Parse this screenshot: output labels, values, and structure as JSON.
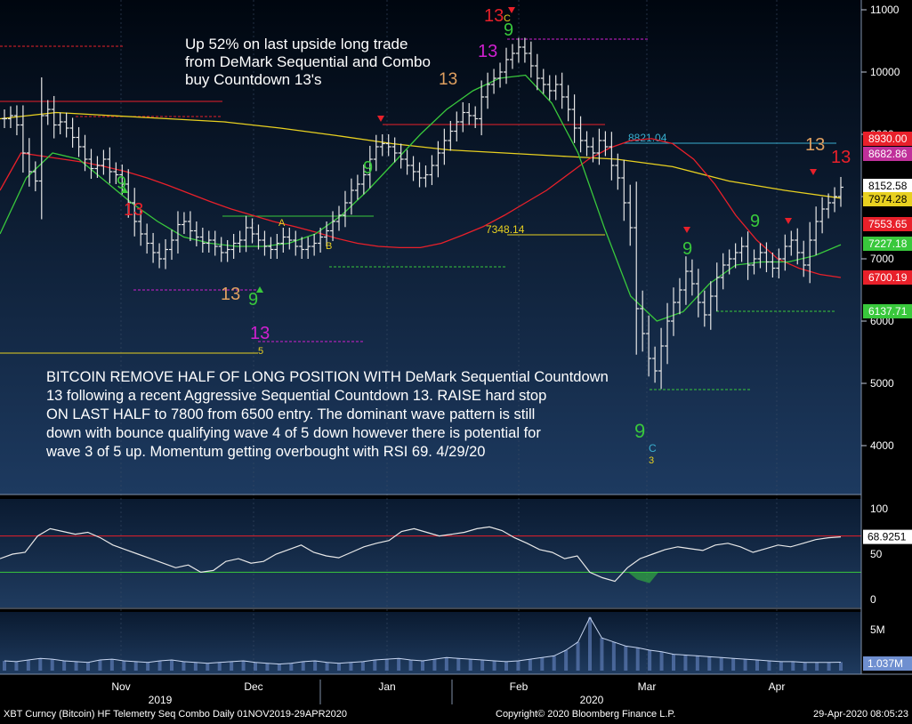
{
  "chart_data": [
    {
      "type": "candlestick",
      "instrument": "XBT Curncy (Bitcoin)",
      "ylim": [
        3300,
        11100
      ],
      "y_ticks": [
        4000,
        5000,
        6000,
        7000,
        8000,
        9000,
        10000,
        11000
      ],
      "x_month_labels": [
        "Nov",
        "Dec",
        "Jan",
        "Feb",
        "Mar",
        "Apr"
      ],
      "x_year_labels": [
        "2019",
        "2020"
      ],
      "price_tags": [
        {
          "value": "8930.00",
          "color": "#e8202a"
        },
        {
          "value": "8682.86",
          "color": "#c0309a"
        },
        {
          "value": "8152.58",
          "color": "#ffffff"
        },
        {
          "value": "7974.28",
          "color": "#e8d020"
        },
        {
          "value": "7553.65",
          "color": "#e8202a"
        },
        {
          "value": "7227.18",
          "color": "#39c83c"
        },
        {
          "value": "6700.19",
          "color": "#e8202a"
        },
        {
          "value": "6137.71",
          "color": "#39c83c"
        }
      ],
      "level_labels": [
        "8821.04",
        "7348.14"
      ],
      "close_series": [
        9250,
        9300,
        9150,
        8700,
        8400,
        8250,
        9300,
        9400,
        9150,
        9200,
        9100,
        8950,
        8800,
        8600,
        8450,
        8500,
        8600,
        8400,
        8350,
        8200,
        7900,
        7600,
        7400,
        7250,
        7100,
        7000,
        7150,
        7300,
        7550,
        7600,
        7450,
        7350,
        7250,
        7300,
        7200,
        7100,
        7150,
        7250,
        7300,
        7500,
        7400,
        7300,
        7200,
        7150,
        7250,
        7350,
        7300,
        7200,
        7150,
        7200,
        7250,
        7350,
        7450,
        7600,
        7700,
        7900,
        8100,
        8200,
        8350,
        8600,
        8800,
        8850,
        8800,
        8700,
        8600,
        8500,
        8400,
        8300,
        8350,
        8500,
        8700,
        8900,
        9050,
        9200,
        9350,
        9300,
        9250,
        9600,
        9800,
        9900,
        10000,
        10200,
        10300,
        10400,
        10300,
        10100,
        9900,
        9800,
        9700,
        9800,
        9600,
        9400,
        9100,
        8900,
        8800,
        8700,
        8900,
        8800,
        8500,
        8300,
        7900,
        7500,
        6200,
        5800,
        5400,
        5200,
        5600,
        6000,
        6300,
        6500,
        6800,
        6600,
        6300,
        6100,
        6400,
        6700,
        6900,
        7000,
        7100,
        7200,
        6900,
        7000,
        7100,
        6950,
        6850,
        7000,
        7200,
        7300,
        7100,
        6900,
        7300,
        7600,
        7800,
        7900,
        8000,
        8150
      ],
      "ma_red": [
        8100,
        8700,
        8650,
        8600,
        8550,
        8480,
        8400,
        8300,
        8180,
        8050,
        7920,
        7800,
        7700,
        7600,
        7520,
        7430,
        7330,
        7250,
        7200,
        7180,
        7180,
        7250,
        7380,
        7520,
        7700,
        7900,
        8100,
        8350,
        8600,
        8780,
        8900,
        8930,
        8850,
        8600,
        8200,
        7700,
        7300,
        7000,
        6850,
        6750,
        6700
      ],
      "ma_green": [
        7400,
        8300,
        8700,
        8600,
        8250,
        7900,
        7600,
        7350,
        7250,
        7200,
        7200,
        7250,
        7400,
        7700,
        8100,
        8550,
        9000,
        9400,
        9700,
        9900,
        9950,
        9500,
        8700,
        7500,
        6400,
        6000,
        6150,
        6600,
        6900,
        6950,
        6950,
        7050,
        7227
      ],
      "ma_yellow": [
        9250,
        9350,
        9300,
        9250,
        9200,
        9100,
        8980,
        8850,
        8750,
        8700,
        8650,
        8600,
        8480,
        8250,
        8100,
        7975
      ]
    },
    {
      "type": "line",
      "indicator": "RSI",
      "ylim": [
        0,
        100
      ],
      "y_ticks": [
        0,
        50,
        100
      ],
      "last_value": "68.9251",
      "levels": [
        70,
        30
      ],
      "values": [
        45,
        50,
        52,
        70,
        78,
        75,
        72,
        74,
        68,
        60,
        55,
        50,
        45,
        40,
        35,
        38,
        30,
        32,
        42,
        45,
        40,
        42,
        50,
        55,
        60,
        52,
        48,
        46,
        52,
        58,
        62,
        65,
        75,
        78,
        74,
        70,
        72,
        74,
        78,
        80,
        76,
        68,
        62,
        55,
        52,
        45,
        48,
        30,
        24,
        20,
        35,
        45,
        50,
        55,
        58,
        56,
        54,
        60,
        62,
        58,
        52,
        56,
        60,
        58,
        62,
        66,
        68,
        69
      ]
    },
    {
      "type": "bar",
      "indicator": "Volume",
      "y_ticks": [
        "5M"
      ],
      "last_value": "1.037M",
      "values": [
        1.2,
        1.1,
        1.3,
        1.5,
        1.4,
        1.2,
        1.1,
        1.0,
        1.3,
        1.4,
        1.2,
        1.1,
        1.0,
        1.2,
        1.3,
        1.1,
        1.0,
        0.9,
        1.0,
        1.1,
        1.2,
        1.0,
        0.9,
        0.8,
        0.9,
        1.1,
        1.2,
        1.0,
        0.9,
        1.0,
        1.1,
        1.3,
        1.4,
        1.5,
        1.3,
        1.2,
        1.4,
        1.6,
        1.5,
        1.4,
        1.3,
        1.2,
        1.1,
        1.2,
        1.4,
        1.6,
        1.8,
        2.5,
        3.5,
        6.5,
        4.0,
        3.5,
        3.0,
        2.8,
        2.5,
        2.3,
        2.0,
        1.9,
        1.8,
        1.7,
        1.6,
        1.5,
        1.4,
        1.3,
        1.2,
        1.1,
        1.1,
        1.0,
        1.0,
        1.0,
        1.037
      ]
    }
  ],
  "annotations": {
    "top": "Up 52% on last upside long trade\nfrom DeMark Sequential and Combo\nbuy Countdown 13's",
    "bottom": "BITCOIN REMOVE HALF OF LONG POSITION WITH DeMark Sequential Countdown\n13 following a recent Aggressive Sequential Countdown 13. RAISE hard stop\nON LAST HALF to 7800 from 6500 entry. The dominant wave pattern is still\ndown with bounce qualifying wave 4 of 5 down however there is potential for\nwave 3 of 5 up. Momentum getting overbought with RSI 69. 4/29/20"
  },
  "markers": [
    {
      "text": "13",
      "color": "#e8202a"
    },
    {
      "text": "9",
      "color": "#39c83c"
    },
    {
      "text": "C",
      "color": "#e8d020"
    },
    {
      "text": "13",
      "color": "#d020d0"
    },
    {
      "text": "13",
      "color": "#e0a060"
    },
    {
      "text": "13",
      "color": "#e0a060"
    },
    {
      "text": "9",
      "color": "#39c83c"
    },
    {
      "text": "13",
      "color": "#d020d0"
    },
    {
      "text": "13",
      "color": "#e8202a"
    },
    {
      "text": "9",
      "color": "#39c83c"
    },
    {
      "text": "9",
      "color": "#39c83c"
    },
    {
      "text": "9",
      "color": "#39c83c"
    },
    {
      "text": "C",
      "color": "#3ab0d0"
    },
    {
      "text": "3",
      "color": "#e8d020"
    },
    {
      "text": "9",
      "color": "#39c83c"
    },
    {
      "text": "9",
      "color": "#39c83c"
    },
    {
      "text": "13",
      "color": "#e0a060"
    },
    {
      "text": "13",
      "color": "#e8202a"
    },
    {
      "text": "A",
      "color": "#e8d020"
    },
    {
      "text": "B",
      "color": "#e8d020"
    },
    {
      "text": "5",
      "color": "#e8d020"
    }
  ],
  "footer": {
    "left": "XBT Curncy (Bitcoin) HF Telemetry Seq Combo  Daily 01NOV2019-29APR2020",
    "middle": "Copyright© 2020 Bloomberg Finance L.P.",
    "right": "29-Apr-2020 08:05:23"
  }
}
